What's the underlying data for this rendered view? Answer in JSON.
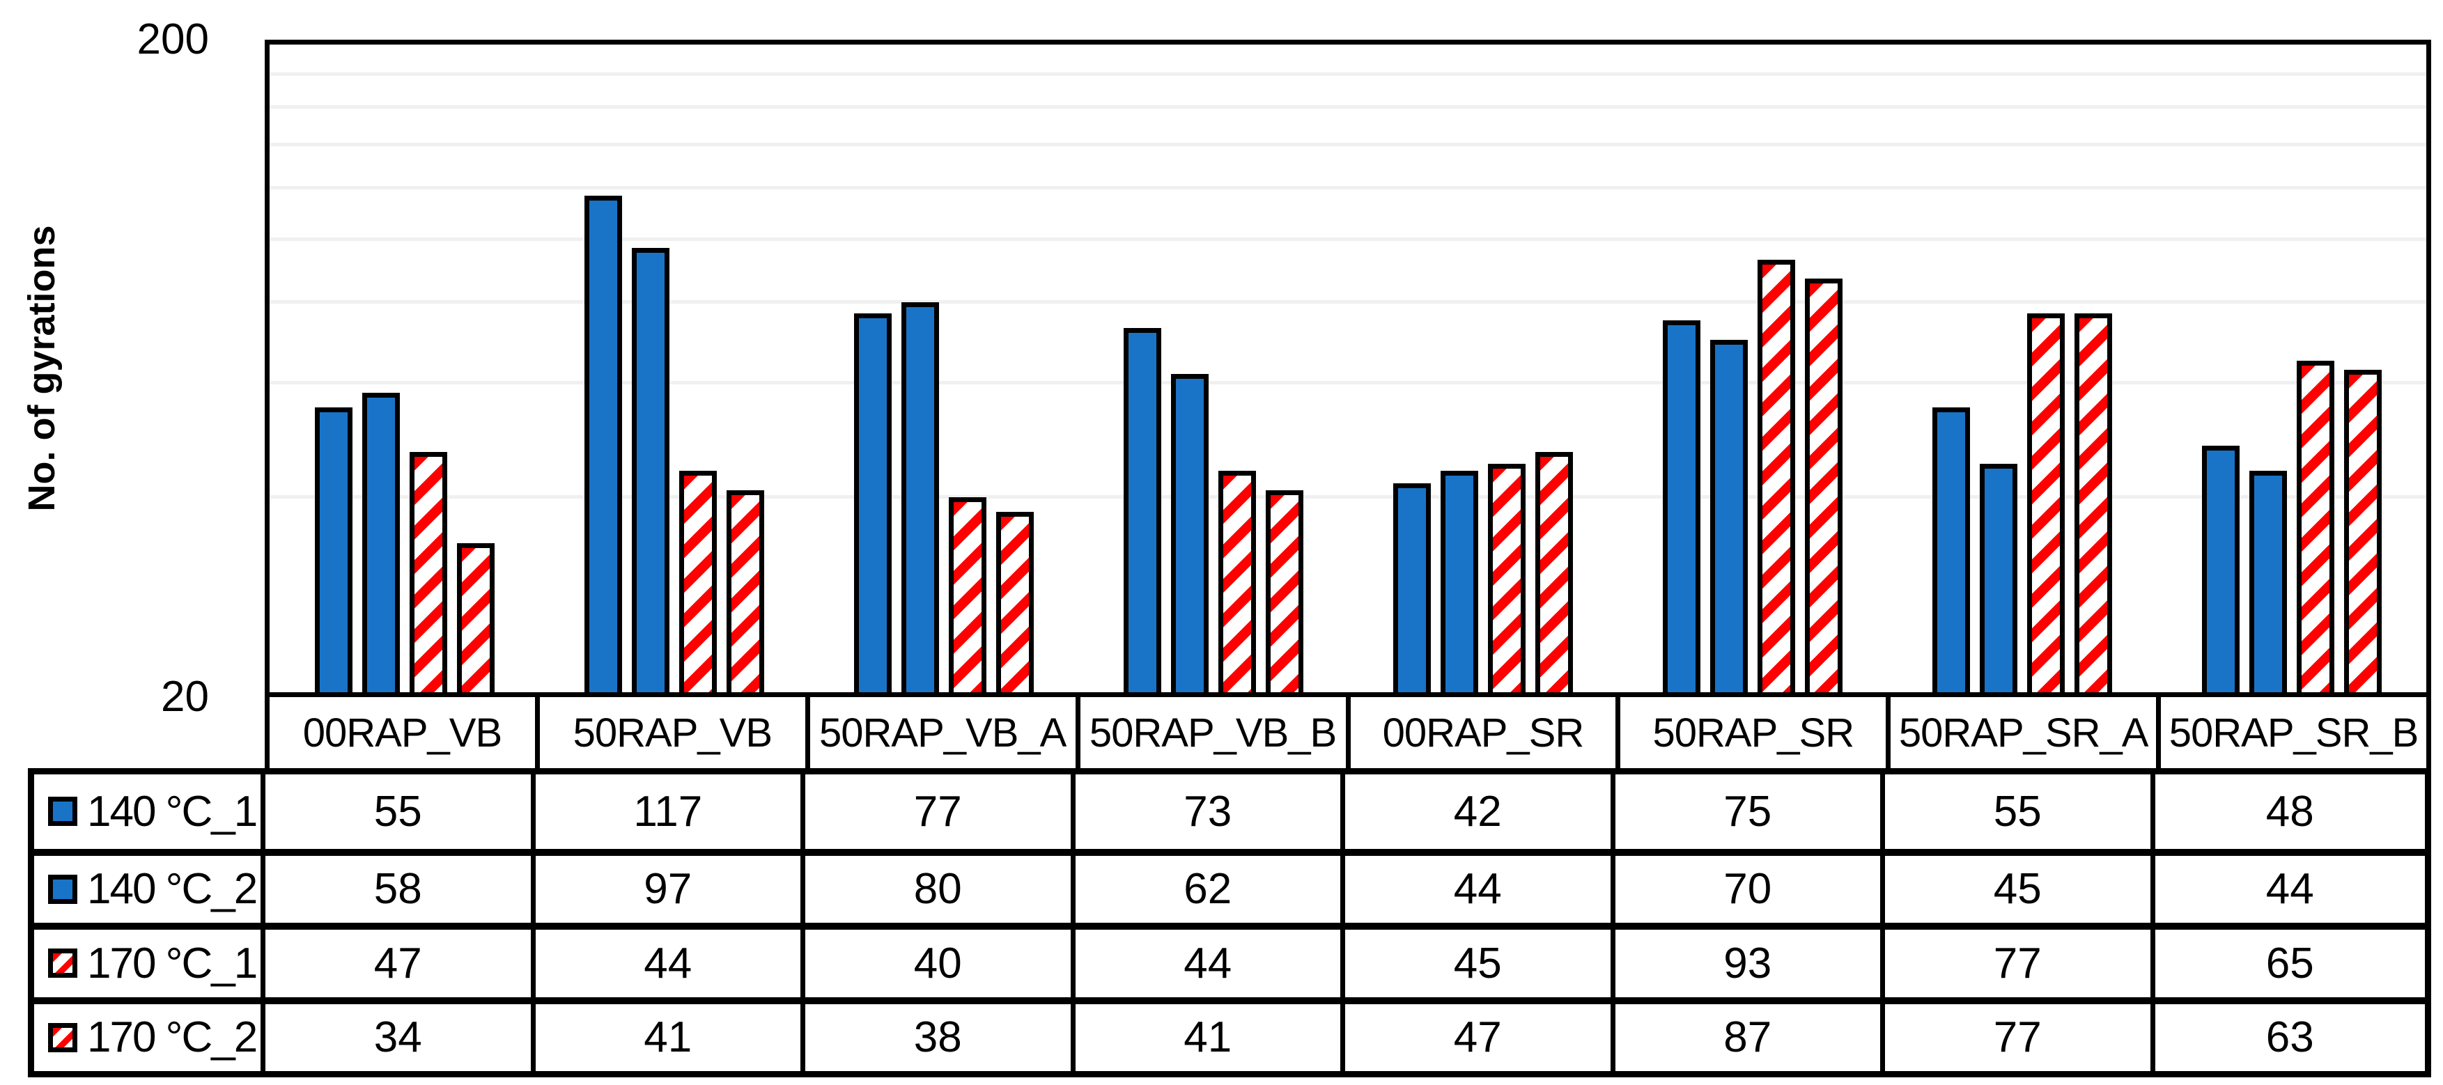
{
  "chart_data": {
    "type": "bar",
    "title": "",
    "xlabel": "",
    "ylabel": "No. of gyrations",
    "y_scale": "log10",
    "ylim": [
      20,
      200
    ],
    "y_tick_labels": [
      "200",
      "20"
    ],
    "gridline_values": [
      40,
      60,
      80,
      100,
      120,
      140,
      160,
      180
    ],
    "grid": true,
    "legend_position": "table-row-headers",
    "categories": [
      "00RAP_VB",
      "50RAP_VB",
      "50RAP_VB_A",
      "50RAP_VB_B",
      "00RAP_SR",
      "50RAP_SR",
      "50RAP_SR_A",
      "50RAP_SR_B"
    ],
    "series": [
      {
        "name": "140 °C_1",
        "pattern": "solid",
        "color": "#1974C8",
        "values": [
          55,
          117,
          77,
          73,
          42,
          75,
          55,
          48
        ]
      },
      {
        "name": "140 °C_2",
        "pattern": "solid",
        "color": "#1974C8",
        "values": [
          58,
          97,
          80,
          62,
          44,
          70,
          45,
          44
        ]
      },
      {
        "name": "170 °C_1",
        "pattern": "diagonal-stripes",
        "color": "#FE0000",
        "values": [
          47,
          44,
          40,
          44,
          45,
          93,
          77,
          65
        ]
      },
      {
        "name": "170 °C_2",
        "pattern": "diagonal-stripes",
        "color": "#FE0000",
        "values": [
          34,
          41,
          38,
          41,
          47,
          87,
          77,
          63
        ]
      }
    ]
  },
  "colors": {
    "bar_blue": "#1974C8",
    "stripe_red": "#FE0000",
    "stripe_background": "#FFFFFF",
    "gridline": "#F0F0F0",
    "border_black": "#000000",
    "background": "#FFFFFF"
  }
}
